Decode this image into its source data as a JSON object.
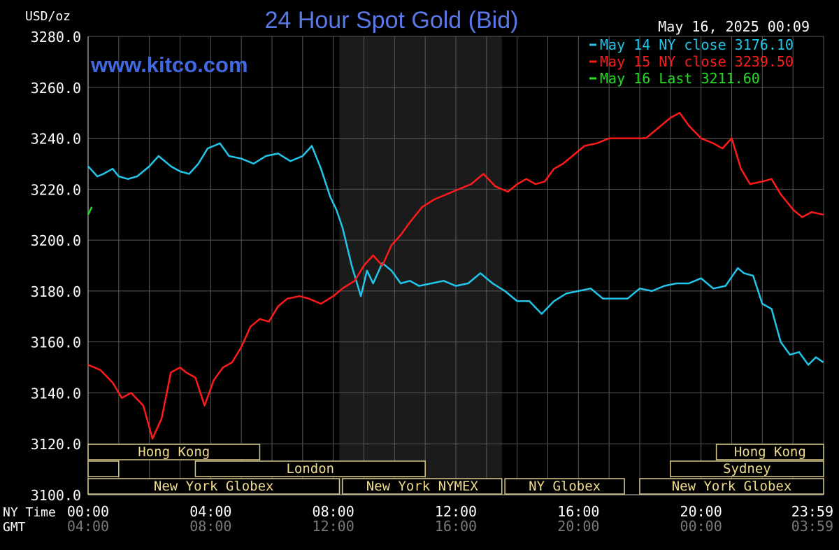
{
  "header": {
    "title": "24 Hour Spot Gold (Bid)",
    "units": "USD/oz",
    "timestamp": "May 16, 2025 00:09",
    "website": "www.kitco.com"
  },
  "legend": {
    "items": [
      {
        "label": "May 14 NY close 3176.10",
        "color": "#22c6ea"
      },
      {
        "label": "May 15 NY close 3239.50",
        "color": "#ff1a1a"
      },
      {
        "label": "May 16 Last 3211.60",
        "color": "#22dd22"
      }
    ]
  },
  "axes": {
    "y_ticks": [
      "3100.0",
      "3120.0",
      "3140.0",
      "3160.0",
      "3180.0",
      "3200.0",
      "3220.0",
      "3240.0",
      "3260.0",
      "3280.0"
    ],
    "x_row_labels": {
      "ny": "NY Time",
      "gmt": "GMT"
    },
    "ny_ticks": [
      "00:00",
      "04:00",
      "08:00",
      "12:00",
      "16:00",
      "20:00",
      "23:59"
    ],
    "gmt_ticks": [
      "04:00",
      "08:00",
      "12:00",
      "16:00",
      "20:00",
      "00:00",
      "03:59"
    ]
  },
  "sessions": [
    {
      "label": "Hong Kong",
      "row": 0,
      "start_h": 0,
      "end_h": 5.6
    },
    {
      "label": "Hong Kong",
      "row": 0,
      "start_h": 20.5,
      "end_h": 24
    },
    {
      "label": "",
      "row": 1,
      "start_h": 0,
      "end_h": 1.0
    },
    {
      "label": "London",
      "row": 1,
      "start_h": 3.5,
      "end_h": 11.0
    },
    {
      "label": "Sydney",
      "row": 1,
      "start_h": 19.0,
      "end_h": 24
    },
    {
      "label": "New York Globex",
      "row": 2,
      "start_h": 0,
      "end_h": 8.2
    },
    {
      "label": "New York NYMEX",
      "row": 2,
      "start_h": 8.3,
      "end_h": 13.5
    },
    {
      "label": "NY Globex",
      "row": 2,
      "start_h": 13.6,
      "end_h": 17.5
    },
    {
      "label": "New York Globex",
      "row": 2,
      "start_h": 18.0,
      "end_h": 24
    }
  ],
  "chart_data": {
    "type": "line",
    "title": "24 Hour Spot Gold (Bid)",
    "ylabel": "USD/oz",
    "xlabel": "NY Time",
    "ylim": [
      3100,
      3280
    ],
    "xlim_hours": [
      0,
      24
    ],
    "shaded_period_hours": [
      8.2,
      13.5
    ],
    "grid": true,
    "legend_position": "top-right",
    "series": [
      {
        "name": "May 14 NY close 3176.10",
        "color": "#22c6ea",
        "x": [
          0,
          0.3,
          0.5,
          0.8,
          1.0,
          1.3,
          1.6,
          2.0,
          2.3,
          2.7,
          3.0,
          3.3,
          3.6,
          3.9,
          4.3,
          4.6,
          5.0,
          5.4,
          5.8,
          6.2,
          6.6,
          7.0,
          7.3,
          7.6,
          7.9,
          8.1,
          8.3,
          8.6,
          8.9,
          9.1,
          9.3,
          9.6,
          9.9,
          10.2,
          10.5,
          10.8,
          11.2,
          11.6,
          12.0,
          12.4,
          12.8,
          13.2,
          13.6,
          14.0,
          14.4,
          14.8,
          15.2,
          15.6,
          16.0,
          16.4,
          16.8,
          17.2,
          17.6,
          18.0,
          18.4,
          18.8,
          19.2,
          19.6,
          20.0,
          20.4,
          20.8,
          21.2,
          21.4,
          21.7,
          22.0,
          22.3,
          22.6,
          22.9,
          23.2,
          23.5,
          23.75,
          23.99
        ],
        "y": [
          3229,
          3225,
          3226,
          3228,
          3225,
          3224,
          3225,
          3229,
          3233,
          3229,
          3227,
          3226,
          3230,
          3236,
          3238,
          3233,
          3232,
          3230,
          3233,
          3234,
          3231,
          3233,
          3237,
          3228,
          3217,
          3212,
          3205,
          3190,
          3178,
          3188,
          3183,
          3191,
          3188,
          3183,
          3184,
          3182,
          3183,
          3184,
          3182,
          3183,
          3187,
          3183,
          3180,
          3176,
          3176,
          3171,
          3176,
          3179,
          3180,
          3181,
          3177,
          3177,
          3177,
          3181,
          3180,
          3182,
          3183,
          3183,
          3185,
          3181,
          3182,
          3189,
          3187,
          3186,
          3175,
          3173,
          3160,
          3155,
          3156,
          3151,
          3154,
          3152
        ]
      },
      {
        "name": "May 15 NY close 3239.50",
        "color": "#ff1a1a",
        "x": [
          0,
          0.4,
          0.8,
          1.1,
          1.4,
          1.8,
          2.1,
          2.4,
          2.7,
          3.0,
          3.2,
          3.5,
          3.8,
          4.1,
          4.4,
          4.7,
          5.0,
          5.3,
          5.6,
          5.9,
          6.2,
          6.5,
          6.9,
          7.2,
          7.6,
          8.0,
          8.3,
          8.7,
          9.0,
          9.3,
          9.6,
          9.9,
          10.2,
          10.5,
          10.9,
          11.3,
          11.7,
          12.1,
          12.5,
          12.9,
          13.3,
          13.7,
          14.0,
          14.3,
          14.6,
          14.9,
          15.2,
          15.5,
          15.8,
          16.2,
          16.6,
          17.0,
          17.4,
          17.8,
          18.2,
          18.6,
          19.0,
          19.3,
          19.6,
          20.0,
          20.4,
          20.7,
          21.0,
          21.3,
          21.6,
          22.0,
          22.3,
          22.6,
          23.0,
          23.3,
          23.6,
          23.99
        ],
        "y": [
          3151,
          3149,
          3144,
          3138,
          3140,
          3135,
          3122,
          3130,
          3148,
          3150,
          3148,
          3146,
          3135,
          3145,
          3150,
          3152,
          3158,
          3166,
          3169,
          3168,
          3174,
          3177,
          3178,
          3177,
          3175,
          3178,
          3181,
          3184,
          3190,
          3194,
          3190,
          3198,
          3202,
          3207,
          3213,
          3216,
          3218,
          3220,
          3222,
          3226,
          3221,
          3219,
          3222,
          3224,
          3222,
          3223,
          3228,
          3230,
          3233,
          3237,
          3238,
          3240,
          3240,
          3240,
          3240,
          3244,
          3248,
          3250,
          3245,
          3240,
          3238,
          3236,
          3240,
          3228,
          3222,
          3223,
          3224,
          3218,
          3212,
          3209,
          3211,
          3210
        ]
      },
      {
        "name": "May 16 Last 3211.60",
        "color": "#22dd22",
        "x": [
          0,
          0.04,
          0.08,
          0.12
        ],
        "y": [
          3210,
          3211,
          3212,
          3213
        ]
      }
    ]
  }
}
